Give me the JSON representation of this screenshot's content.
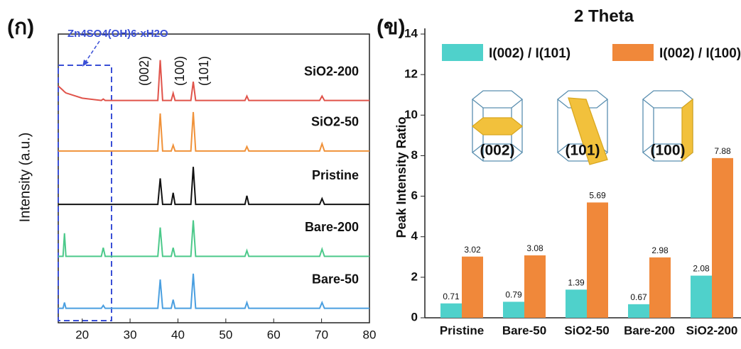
{
  "chart_data": [
    {
      "type": "line",
      "panel_label": "(ก)",
      "ylabel": "Intensity (a.u.)",
      "annotations": [
        "Zn4SO4(OH)6·xH2O",
        "(002)",
        "(100)",
        "(101)"
      ],
      "x": [
        15,
        16,
        16.3,
        16.6,
        20,
        24,
        24.4,
        24.8,
        30,
        35.8,
        36.3,
        36.8,
        38.6,
        39,
        39.4,
        42.7,
        43.2,
        43.7,
        50,
        54,
        54.4,
        54.8,
        60,
        69.6,
        70.1,
        70.6,
        75,
        80
      ],
      "xlim": [
        15,
        80
      ],
      "xticks": [
        20,
        30,
        40,
        50,
        60,
        70,
        80
      ],
      "ylim": [
        0,
        100
      ],
      "series": [
        {
          "name": "SiO2-200",
          "color": "#e0534a",
          "values": [
            82,
            80.5,
            80,
            79.6,
            77.8,
            77,
            77.5,
            77,
            77,
            77,
            91,
            77,
            77,
            79.5,
            77,
            77,
            83.5,
            77,
            77,
            77,
            78.5,
            77,
            77,
            77,
            78.5,
            77,
            77,
            77
          ]
        },
        {
          "name": "SiO2-50",
          "color": "#f0923a",
          "values": [
            59.5,
            59.5,
            59.5,
            59.5,
            59.5,
            59.5,
            59.5,
            59.5,
            59.5,
            59.5,
            72.5,
            59.5,
            59.5,
            61.5,
            59.5,
            59.5,
            73,
            59.5,
            59.5,
            59.5,
            61,
            59.5,
            59.5,
            59.5,
            62,
            59.5,
            59.5,
            59.5
          ]
        },
        {
          "name": "Pristine",
          "color": "#111111",
          "values": [
            41,
            41,
            41,
            41,
            41,
            41,
            41,
            41,
            41,
            41,
            50,
            41,
            41,
            45,
            41,
            41,
            54,
            41,
            41,
            41,
            44,
            41,
            41,
            41,
            43,
            41,
            41,
            41
          ]
        },
        {
          "name": "Bare-200",
          "color": "#4cc98a",
          "values": [
            23,
            23,
            31,
            23,
            23,
            23,
            26,
            23,
            23,
            23,
            33,
            23,
            23,
            26,
            23,
            23,
            35.5,
            23,
            23,
            23,
            25,
            23,
            23,
            23,
            25.5,
            23,
            23,
            23
          ]
        },
        {
          "name": "Bare-50",
          "color": "#4a9fe0",
          "values": [
            5,
            5,
            7,
            5,
            5,
            5,
            6,
            5,
            5,
            5,
            15,
            5,
            5,
            8,
            5,
            5,
            17,
            5,
            5,
            5,
            7,
            5,
            5,
            5,
            7,
            5,
            5,
            5
          ]
        }
      ]
    },
    {
      "type": "bar",
      "title": "2 Theta",
      "panel_label": "(ข)",
      "ylabel": "Peak Intensity Ratio",
      "annotations": [
        "(002)",
        "(101)",
        "(100)"
      ],
      "categories": [
        "Pristine",
        "Bare-50",
        "SiO2-50",
        "Bare-200",
        "SiO2-200"
      ],
      "ylim": [
        0,
        14
      ],
      "yticks": [
        0,
        2,
        4,
        6,
        8,
        10,
        12,
        14
      ],
      "legend": "top",
      "series": [
        {
          "name": "I(002) / I(101)",
          "color": "#4fd1cb",
          "values": [
            0.71,
            0.79,
            1.39,
            0.67,
            2.08
          ]
        },
        {
          "name": "I(002) / I(100)",
          "color": "#f0883a",
          "values": [
            3.02,
            3.08,
            5.69,
            2.98,
            7.88
          ]
        }
      ]
    }
  ]
}
